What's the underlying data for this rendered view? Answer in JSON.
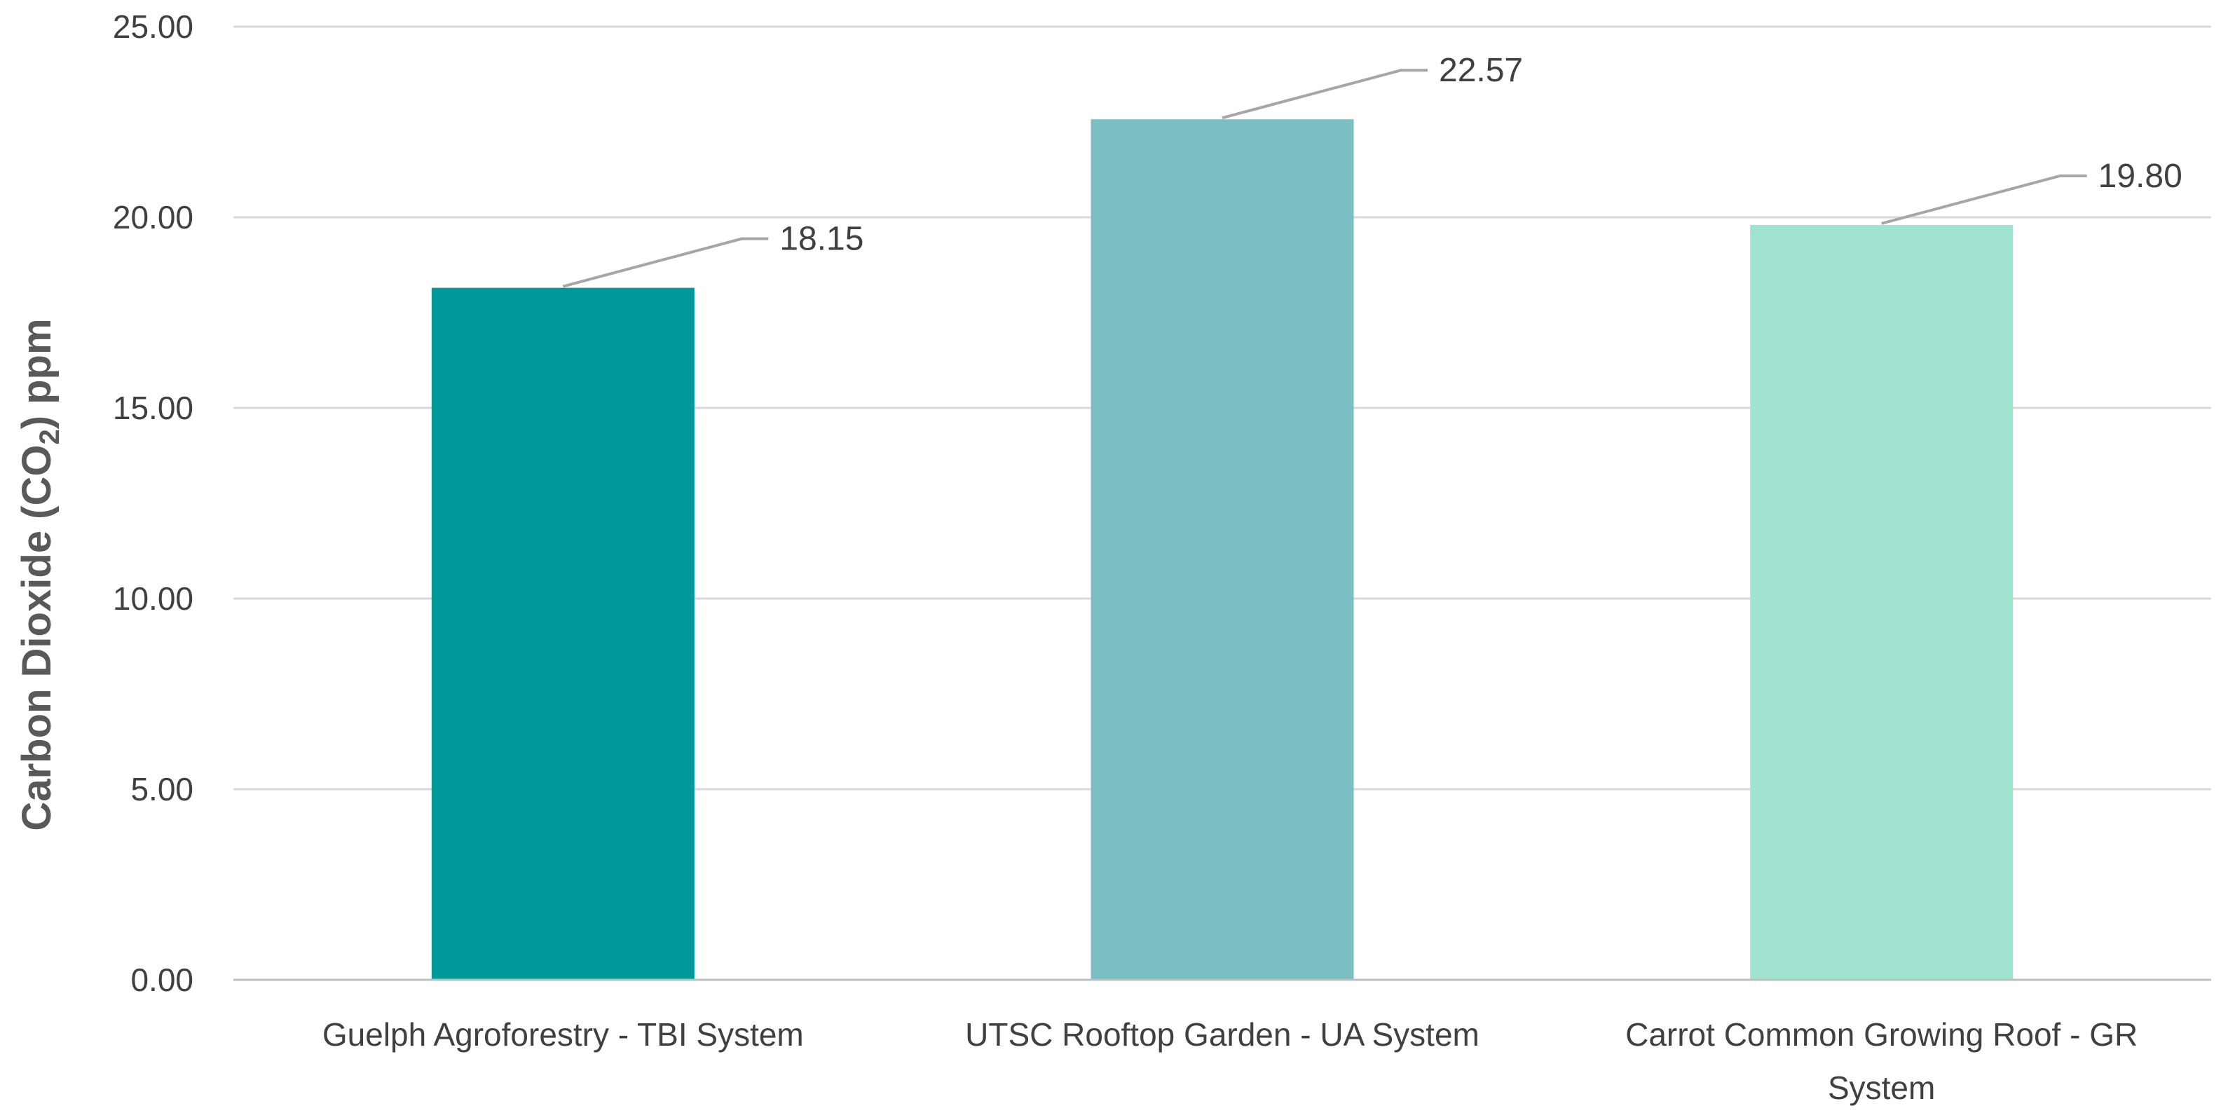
{
  "chart_data": {
    "type": "bar",
    "categories": [
      "Guelph Agroforestry - TBI System",
      "UTSC Rooftop Garden - UA System",
      "Carrot Common Growing Roof - GR System"
    ],
    "category_lines": [
      [
        "Guelph Agroforestry - TBI System"
      ],
      [
        "UTSC Rooftop Garden - UA System"
      ],
      [
        "Carrot Common Growing Roof - GR",
        "System"
      ]
    ],
    "values": [
      18.15,
      22.57,
      19.8
    ],
    "data_labels": [
      "18.15",
      "22.57",
      "19.80"
    ],
    "title": "",
    "xlabel": "",
    "ylabel": {
      "prefix": "Carbon Dioxide (CO",
      "subscript": "2",
      "suffix": ") ppm"
    },
    "ylim": [
      0,
      25
    ],
    "yticks": [
      0,
      5,
      10,
      15,
      20,
      25
    ],
    "ytick_labels": [
      "0.00",
      "5.00",
      "10.00",
      "15.00",
      "20.00",
      "25.00"
    ],
    "grid": true,
    "legend": "none",
    "colors": [
      "#009999",
      "#7cbfc3",
      "#a0e3d1"
    ],
    "grid_color": "#d9d9d9",
    "axis_color": "#bfbfbf",
    "label_color": "#404040",
    "leader_color": "#a6a6a6"
  }
}
